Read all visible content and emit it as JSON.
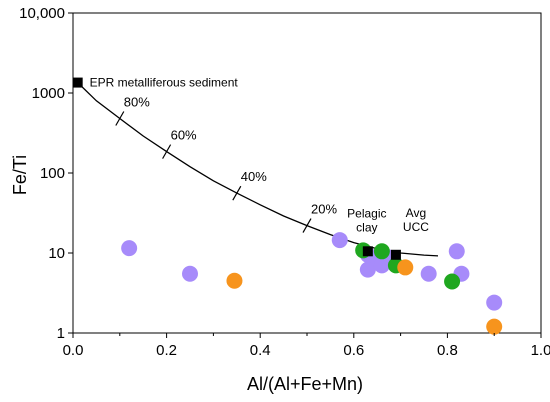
{
  "chart_data": {
    "type": "scatter",
    "xlabel": "Al/(Al+Fe+Mn)",
    "ylabel": "Fe/Ti",
    "xlim": [
      0.0,
      1.0
    ],
    "ylim": [
      1,
      10000
    ],
    "y_scale": "log",
    "grid": false,
    "x_ticks": [
      0.0,
      0.2,
      0.4,
      0.6,
      0.8,
      1.0
    ],
    "x_tick_labels": [
      "0.0",
      "0.2",
      "0.4",
      "0.6",
      "0.8",
      "1.0"
    ],
    "y_ticks": [
      1,
      10,
      100,
      1000,
      10000
    ],
    "y_tick_labels": [
      "1",
      "10",
      "100",
      "1000",
      "10,000"
    ],
    "colors": {
      "purple": "#a78bfa",
      "green": "#1fa71f",
      "orange": "#f7941d",
      "end_member": "#000000",
      "mixing_line": "#000000"
    },
    "series": [
      {
        "color": "purple",
        "marker": "circle",
        "points": [
          {
            "x": 0.12,
            "y": 11.5
          },
          {
            "x": 0.25,
            "y": 5.5
          },
          {
            "x": 0.57,
            "y": 14.5
          },
          {
            "x": 0.63,
            "y": 9.5
          },
          {
            "x": 0.64,
            "y": 7.5
          },
          {
            "x": 0.63,
            "y": 6.2
          },
          {
            "x": 0.66,
            "y": 7.0
          },
          {
            "x": 0.67,
            "y": 9.0
          },
          {
            "x": 0.76,
            "y": 5.5
          },
          {
            "x": 0.82,
            "y": 10.5
          },
          {
            "x": 0.83,
            "y": 5.5
          },
          {
            "x": 0.9,
            "y": 2.4
          }
        ]
      },
      {
        "color": "green",
        "marker": "circle",
        "points": [
          {
            "x": 0.62,
            "y": 10.8
          },
          {
            "x": 0.66,
            "y": 10.5
          },
          {
            "x": 0.69,
            "y": 7.0
          },
          {
            "x": 0.81,
            "y": 4.4
          }
        ]
      },
      {
        "color": "orange",
        "marker": "circle",
        "points": [
          {
            "x": 0.345,
            "y": 4.5
          },
          {
            "x": 0.71,
            "y": 6.6
          },
          {
            "x": 0.9,
            "y": 1.2
          }
        ]
      }
    ],
    "end_members": [
      {
        "label": "EPR metalliferous sediment",
        "x": 0.01,
        "y": 1350
      },
      {
        "label": "Pelagic clay",
        "x": 0.63,
        "y": 10.5
      },
      {
        "label": "Avg UCC",
        "x": 0.69,
        "y": 9.5
      }
    ],
    "mixing_curve": {
      "points": [
        {
          "x": 0.01,
          "y": 1350
        },
        {
          "x": 0.05,
          "y": 800
        },
        {
          "x": 0.1,
          "y": 480
        },
        {
          "x": 0.15,
          "y": 290
        },
        {
          "x": 0.2,
          "y": 185
        },
        {
          "x": 0.25,
          "y": 120
        },
        {
          "x": 0.3,
          "y": 80
        },
        {
          "x": 0.35,
          "y": 56
        },
        {
          "x": 0.4,
          "y": 40
        },
        {
          "x": 0.45,
          "y": 29
        },
        {
          "x": 0.5,
          "y": 22
        },
        {
          "x": 0.55,
          "y": 17
        },
        {
          "x": 0.6,
          "y": 13.5
        },
        {
          "x": 0.65,
          "y": 11.3
        },
        {
          "x": 0.7,
          "y": 10.0
        },
        {
          "x": 0.75,
          "y": 9.4
        },
        {
          "x": 0.78,
          "y": 9.2
        }
      ],
      "tick_marks": [
        {
          "label": "80%",
          "x": 0.1
        },
        {
          "label": "60%",
          "x": 0.2
        },
        {
          "label": "40%",
          "x": 0.35
        },
        {
          "label": "20%",
          "x": 0.5
        }
      ]
    }
  }
}
